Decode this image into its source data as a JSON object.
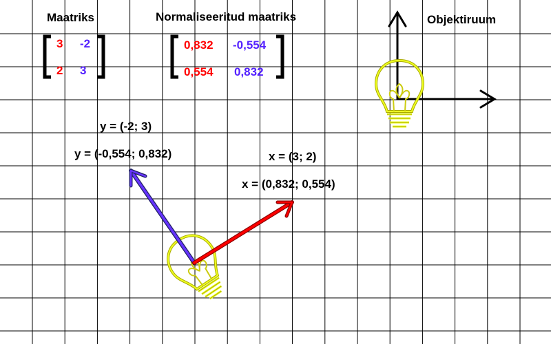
{
  "titles": {
    "matrix": "Maatriks",
    "normalized": "Normaliseeritud maatriks",
    "object_space": "Objektiruum"
  },
  "matrix": {
    "row1": [
      "3",
      "-2"
    ],
    "row2": [
      "2",
      "3"
    ]
  },
  "normalized_matrix": {
    "row1": [
      "0,832",
      "-0,554"
    ],
    "row2": [
      "0,554",
      "0,832"
    ]
  },
  "labels": {
    "y_vector": "y = (-2; 3)",
    "y_normalized": "y = (-0,554; 0,832)",
    "x_vector": "x = (3; 2)",
    "x_normalized": "x = (0,832; 0,554)"
  },
  "colors": {
    "x_axis": "#ff0000",
    "x_axis_outline": "#8b0000",
    "y_axis": "#6633ff",
    "y_axis_outline": "#222266",
    "bulb": "#eeff22",
    "bulb_outline": "#aaaa00",
    "grid": "#000000",
    "text": "#000000"
  },
  "icons": {
    "object_bulb": "lightbulb-icon",
    "rotated_bulb": "lightbulb-icon"
  }
}
